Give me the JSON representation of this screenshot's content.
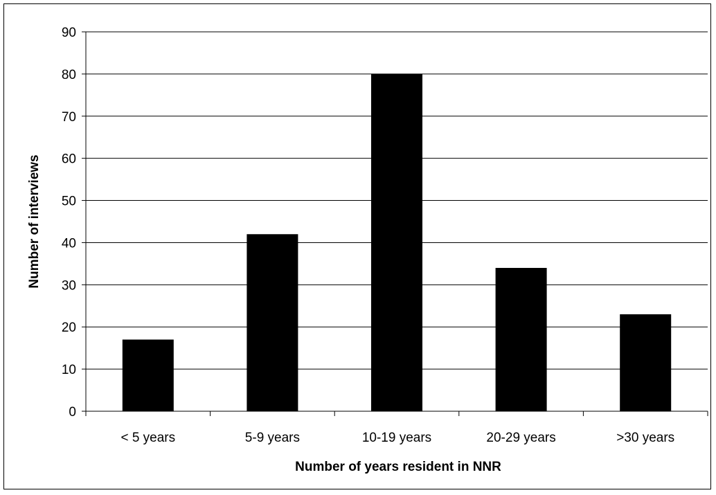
{
  "chart_data": {
    "type": "bar",
    "title": "",
    "categories": [
      "< 5 years",
      "5-9 years",
      "10-19 years",
      "20-29 years",
      ">30 years"
    ],
    "values": [
      17,
      42,
      80,
      34,
      23
    ],
    "xlabel": "Number of years resident in NNR",
    "ylabel": "Number of interviews",
    "ylim": [
      0,
      90
    ],
    "yticks": [
      0,
      10,
      20,
      30,
      40,
      50,
      60,
      70,
      80,
      90
    ],
    "grid": "horizontal",
    "legend": "none",
    "bar_color": "#000000"
  }
}
